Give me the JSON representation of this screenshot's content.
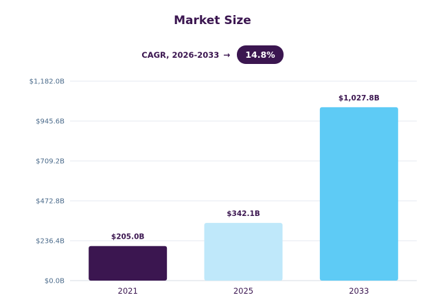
{
  "chart_data": {
    "type": "bar",
    "title": "Market Size",
    "cagr": {
      "label": "CAGR, 2026-2033",
      "arrow": "→",
      "value": "14.8%"
    },
    "categories": [
      "2021",
      "2025",
      "2033"
    ],
    "values": [
      205.0,
      342.1,
      1027.8
    ],
    "value_labels": [
      "$205.0B",
      "$342.1B",
      "$1,027.8B"
    ],
    "bar_colors": [
      "#3b1650",
      "#bfe8fa",
      "#5ecbf5"
    ],
    "ylim": [
      0,
      1182.0
    ],
    "yticks": [
      0,
      236.4,
      472.8,
      709.2,
      945.6,
      1182.0
    ],
    "ytick_labels": [
      "$0.0B",
      "$236.4B",
      "$472.8B",
      "$709.2B",
      "$945.6B",
      "$1,182.0B"
    ],
    "xlabel": "",
    "ylabel": "",
    "grid": true,
    "legend": "none"
  }
}
